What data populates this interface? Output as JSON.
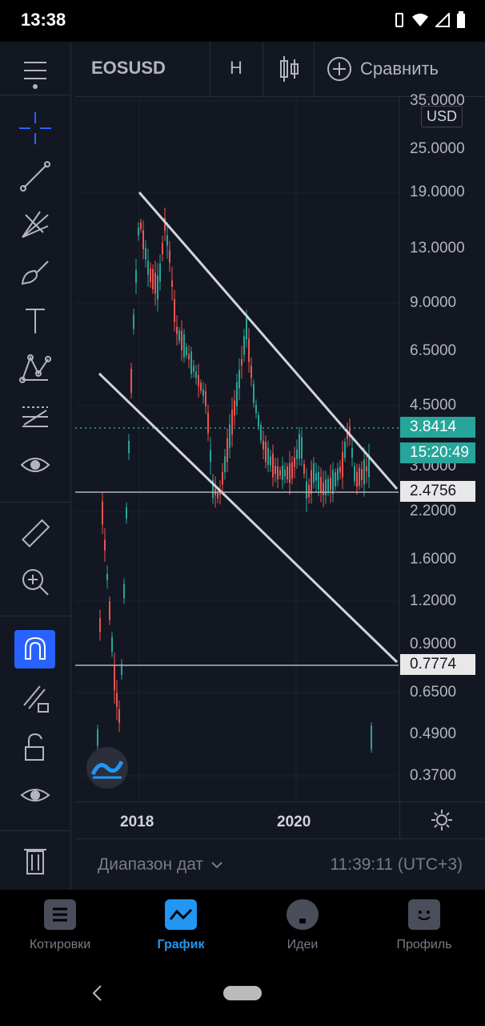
{
  "status": {
    "time": "13:38"
  },
  "toolbar": {
    "symbol": "EOSUSD",
    "interval": "H",
    "compare_label": "Сравнить"
  },
  "chart": {
    "currency": "USD",
    "price_ticks": [
      "35.0000",
      "25.0000",
      "19.0000",
      "13.0000",
      "9.0000",
      "6.5000",
      "4.5000",
      "3.0000",
      "2.2000",
      "1.6000",
      "1.2000",
      "0.9000",
      "0.6500",
      "0.4900",
      "0.3700"
    ],
    "last_price": "3.8414",
    "countdown": "15:20:49",
    "hline_upper": "2.4756",
    "hline_lower": "0.7774",
    "time_ticks": [
      "2018",
      "2020"
    ],
    "colors": {
      "up": "#26a69a",
      "down": "#ef5350",
      "accent": "#2962ff",
      "bg": "#131722"
    }
  },
  "bottom": {
    "date_range_label": "Диапазон дат",
    "clock": "11:39:11 (UTC+3)"
  },
  "nav": [
    {
      "label": "Котировки",
      "icon": "quotes-icon"
    },
    {
      "label": "График",
      "icon": "chart-icon"
    },
    {
      "label": "Идеи",
      "icon": "ideas-icon"
    },
    {
      "label": "Профиль",
      "icon": "profile-icon"
    }
  ]
}
